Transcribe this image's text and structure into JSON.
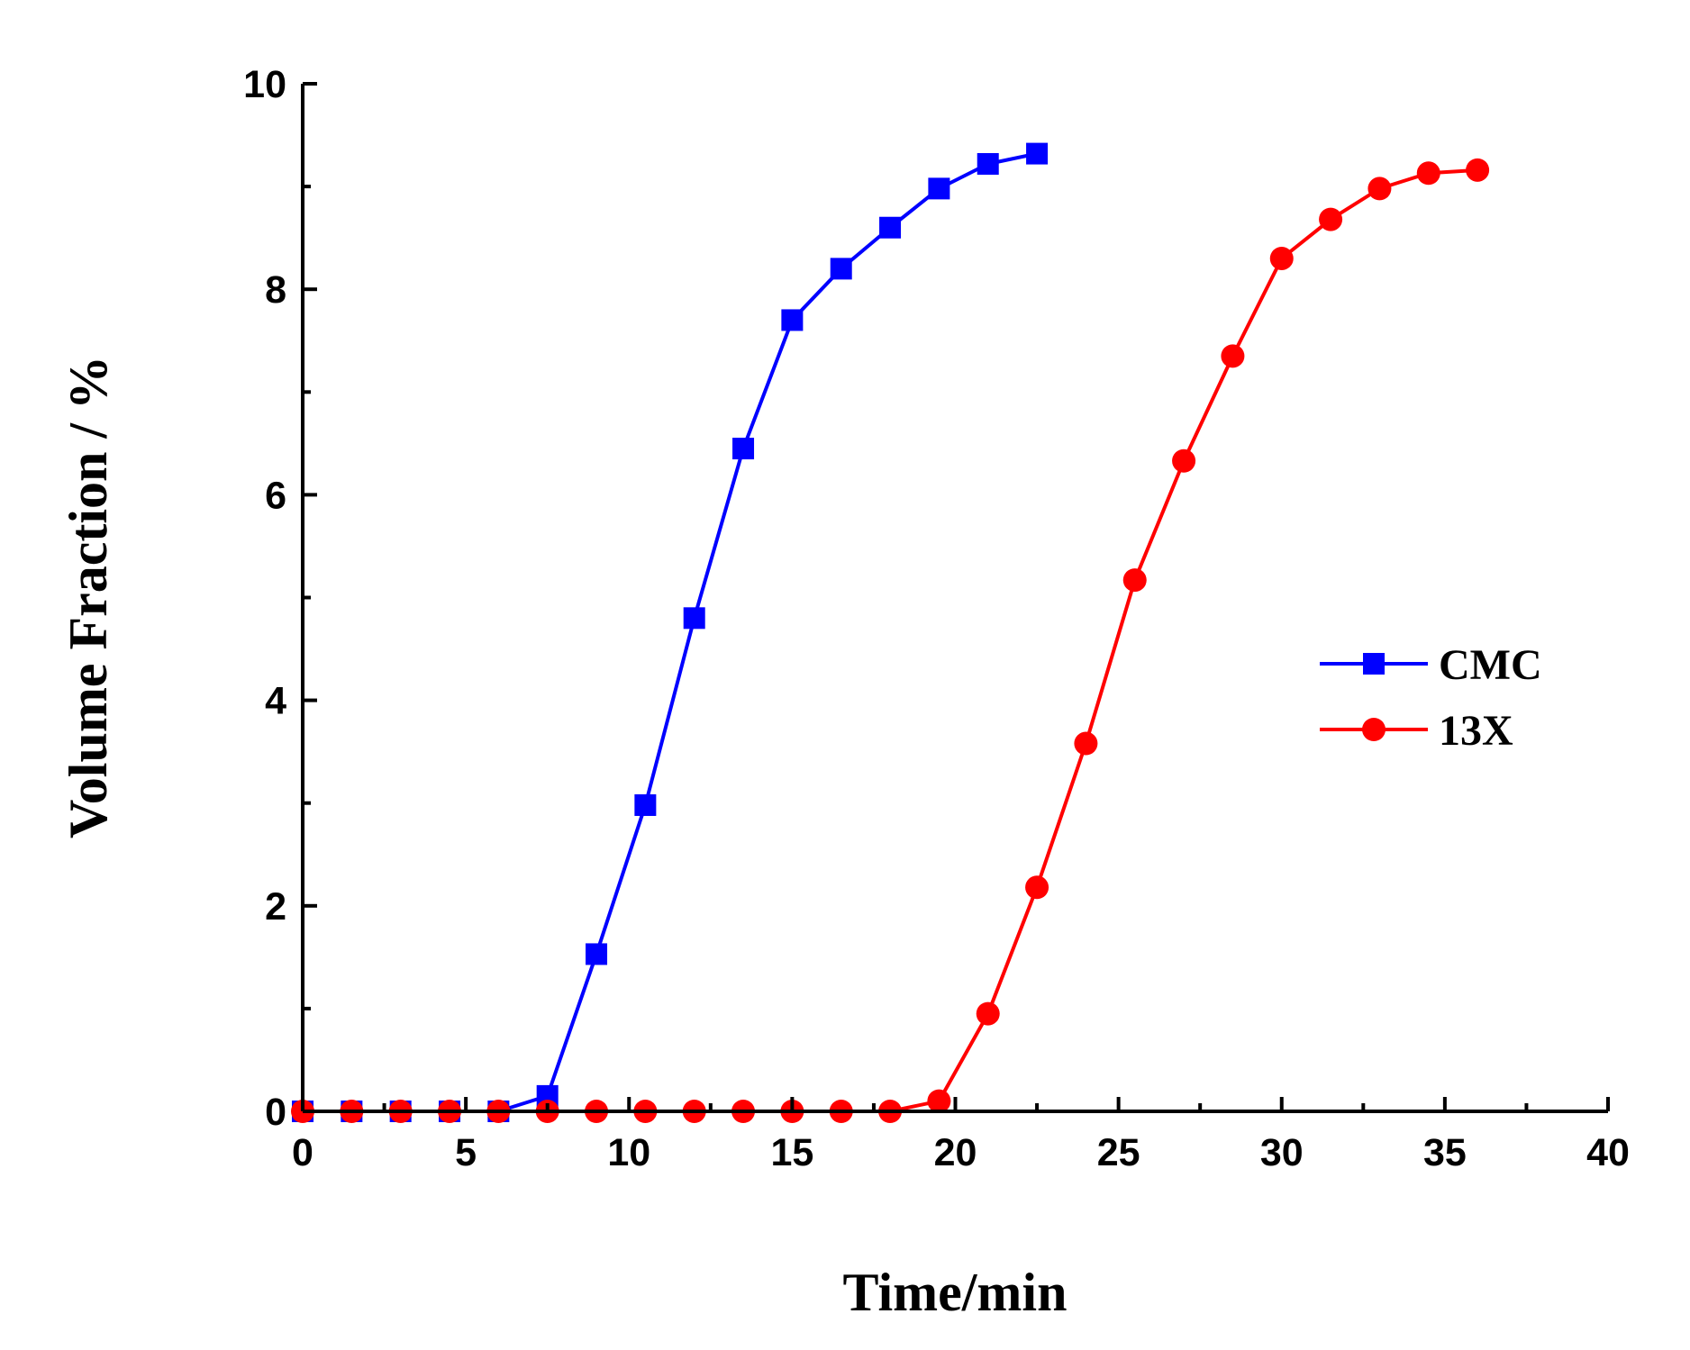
{
  "chart_data": {
    "type": "line",
    "title": "",
    "xlabel": "Time/min",
    "ylabel": "Volume Fraction / %",
    "xlim": [
      0,
      40
    ],
    "ylim": [
      0,
      10
    ],
    "xticks": [
      0,
      5,
      10,
      15,
      20,
      25,
      30,
      35,
      40
    ],
    "yticks": [
      0,
      2,
      4,
      6,
      8,
      10
    ],
    "xtick_labels": [
      "0",
      "5",
      "10",
      "15",
      "20",
      "25",
      "30",
      "35",
      "40"
    ],
    "ytick_labels": [
      "0",
      "2",
      "4",
      "6",
      "8",
      "10"
    ],
    "grid": false,
    "legend_position": "right",
    "series": [
      {
        "name": "CMC",
        "color": "#0000ff",
        "marker": "square",
        "x": [
          0,
          1.5,
          3,
          4.5,
          6,
          7.5,
          9,
          10.5,
          12,
          13.5,
          15,
          16.5,
          18,
          19.5,
          21,
          22.5
        ],
        "y": [
          0,
          0,
          0,
          0,
          0,
          0.15,
          1.53,
          2.98,
          4.8,
          6.45,
          7.7,
          8.2,
          8.6,
          8.98,
          9.22,
          9.32
        ]
      },
      {
        "name": "13X",
        "color": "#ff0000",
        "marker": "circle",
        "x": [
          0,
          1.5,
          3,
          4.5,
          6,
          7.5,
          9,
          10.5,
          12,
          13.5,
          15,
          16.5,
          18,
          19.5,
          21,
          22.5,
          24,
          25.5,
          27,
          28.5,
          30,
          31.5,
          33,
          34.5,
          36
        ],
        "y": [
          0,
          0,
          0,
          0,
          0,
          0,
          0,
          0,
          0,
          0,
          0,
          0,
          0,
          0.1,
          0.95,
          2.18,
          3.58,
          5.17,
          6.33,
          7.35,
          8.3,
          8.68,
          8.98,
          9.13,
          9.16
        ]
      }
    ]
  }
}
